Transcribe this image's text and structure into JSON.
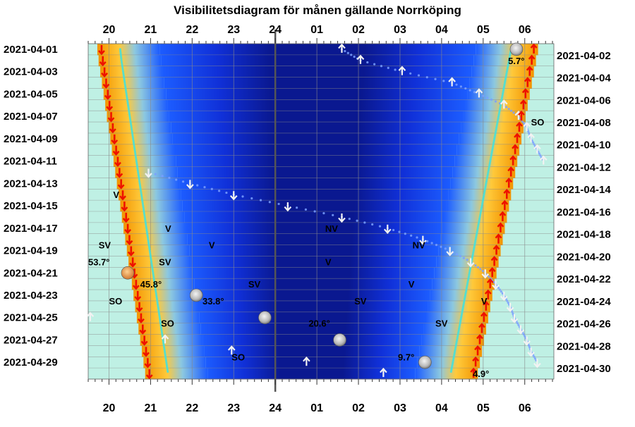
{
  "chart_data": {
    "type": "heatmap",
    "title": "Visibilitetsdiagram för månen gällande Norrköping",
    "hour_labels": [
      "20",
      "21",
      "22",
      "23",
      "24",
      "01",
      "02",
      "03",
      "04",
      "05",
      "06"
    ],
    "left_dates": [
      "2021-04-01",
      "2021-04-03",
      "2021-04-05",
      "2021-04-07",
      "2021-04-09",
      "2021-04-11",
      "2021-04-13",
      "2021-04-15",
      "2021-04-17",
      "2021-04-19",
      "2021-04-21",
      "2021-04-23",
      "2021-04-25",
      "2021-04-27",
      "2021-04-29"
    ],
    "right_dates": [
      "2021-04-02",
      "2021-04-04",
      "2021-04-06",
      "2021-04-08",
      "2021-04-10",
      "2021-04-12",
      "2021-04-14",
      "2021-04-16",
      "2021-04-18",
      "2021-04-20",
      "2021-04-22",
      "2021-04-24",
      "2021-04-26",
      "2021-04-28",
      "2021-04-30"
    ],
    "x_range_hours": [
      19.5,
      30.7
    ],
    "days": 30,
    "sunset_hours": [
      19.72,
      19.75,
      19.79,
      19.83,
      19.87,
      19.91,
      19.95,
      19.99,
      20.03,
      20.07,
      20.11,
      20.15,
      20.19,
      20.23,
      20.27,
      20.31,
      20.35,
      20.39,
      20.43,
      20.47,
      20.51,
      20.55,
      20.59,
      20.63,
      20.67,
      20.71,
      20.75,
      20.79,
      20.83,
      20.87
    ],
    "sunrise_hours": [
      30.32,
      30.27,
      30.22,
      30.17,
      30.12,
      30.07,
      30.02,
      29.97,
      29.92,
      29.87,
      29.82,
      29.77,
      29.72,
      29.67,
      29.62,
      29.57,
      29.52,
      29.47,
      29.42,
      29.37,
      29.32,
      29.27,
      29.22,
      29.17,
      29.12,
      29.07,
      29.02,
      28.97,
      28.92,
      28.87
    ],
    "moon_phase_markers": [
      {
        "day": 1,
        "hour": 29.8,
        "phase": "full"
      },
      {
        "day": 21,
        "hour": 20.45,
        "phase": "waxing-gibbous"
      },
      {
        "day": 23,
        "hour": 22.1,
        "phase": "waxing-gibbous"
      },
      {
        "day": 25,
        "hour": 23.75,
        "phase": "full"
      },
      {
        "day": 27,
        "hour": 25.55,
        "phase": "full"
      },
      {
        "day": 29,
        "hour": 27.6,
        "phase": "waning-gibbous"
      }
    ],
    "moonrise_markers": [
      {
        "day": 1,
        "hour": 25.6
      },
      {
        "day": 2,
        "hour": 26.05
      },
      {
        "day": 3,
        "hour": 27.05
      },
      {
        "day": 4,
        "hour": 28.25
      },
      {
        "day": 5,
        "hour": 28.9
      },
      {
        "day": 6,
        "hour": 29.5
      },
      {
        "day": 7,
        "hour": 29.85
      },
      {
        "day": 8,
        "hour": 30.05
      },
      {
        "day": 9,
        "hour": 30.15
      },
      {
        "day": 10,
        "hour": 30.3
      },
      {
        "day": 11,
        "hour": 30.45
      },
      {
        "day": 25,
        "hour": 19.55
      },
      {
        "day": 27,
        "hour": 21.35
      },
      {
        "day": 28,
        "hour": 22.95
      },
      {
        "day": 29,
        "hour": 24.75
      },
      {
        "day": 30,
        "hour": 26.6
      }
    ],
    "moonset_markers": [
      {
        "day": 12,
        "hour": 20.95
      },
      {
        "day": 13,
        "hour": 21.95
      },
      {
        "day": 14,
        "hour": 23.0
      },
      {
        "day": 15,
        "hour": 24.3
      },
      {
        "day": 16,
        "hour": 25.6
      },
      {
        "day": 17,
        "hour": 26.7
      },
      {
        "day": 18,
        "hour": 27.55
      },
      {
        "day": 19,
        "hour": 28.2
      },
      {
        "day": 20,
        "hour": 28.7
      },
      {
        "day": 21,
        "hour": 29.05
      },
      {
        "day": 22,
        "hour": 29.3
      },
      {
        "day": 23,
        "hour": 29.5
      },
      {
        "day": 24,
        "hour": 29.65
      },
      {
        "day": 25,
        "hour": 29.75
      },
      {
        "day": 26,
        "hour": 29.9
      },
      {
        "day": 27,
        "hour": 30.05
      },
      {
        "day": 28,
        "hour": 30.15
      },
      {
        "day": 29,
        "hour": 30.3
      }
    ],
    "annotations": [
      {
        "text": "5.7°",
        "day": 2,
        "hour": 29.6
      },
      {
        "text": "SO",
        "day": 7.5,
        "hour": 30.15
      },
      {
        "text": "V",
        "day": 14,
        "hour": 20.1
      },
      {
        "text": "V",
        "day": 17,
        "hour": 21.35
      },
      {
        "text": "NV",
        "day": 17,
        "hour": 25.2
      },
      {
        "text": "SV",
        "day": 18.5,
        "hour": 19.75
      },
      {
        "text": "V",
        "day": 18.5,
        "hour": 22.4
      },
      {
        "text": "NV",
        "day": 18.5,
        "hour": 27.3
      },
      {
        "text": "53.7°",
        "day": 20,
        "hour": 19.5
      },
      {
        "text": "SV",
        "day": 20,
        "hour": 21.2
      },
      {
        "text": "V",
        "day": 20,
        "hour": 25.2
      },
      {
        "text": "45.8°",
        "day": 22,
        "hour": 20.75
      },
      {
        "text": "SV",
        "day": 22,
        "hour": 23.35
      },
      {
        "text": "V",
        "day": 22,
        "hour": 27.2
      },
      {
        "text": "SO",
        "day": 23.5,
        "hour": 20.0
      },
      {
        "text": "33.8°",
        "day": 23.5,
        "hour": 22.25
      },
      {
        "text": "SV",
        "day": 23.5,
        "hour": 25.9
      },
      {
        "text": "V",
        "day": 23.5,
        "hour": 28.95
      },
      {
        "text": "SO",
        "day": 25.5,
        "hour": 21.25
      },
      {
        "text": "20.6°",
        "day": 25.5,
        "hour": 24.8
      },
      {
        "text": "SV",
        "day": 25.5,
        "hour": 27.85
      },
      {
        "text": "SO",
        "day": 28.5,
        "hour": 22.95
      },
      {
        "text": "9.7°",
        "day": 28.5,
        "hour": 26.95
      },
      {
        "text": "4.9°",
        "day": 30,
        "hour": 28.75
      }
    ],
    "colors": {
      "day_sky": "#bff0e4",
      "twilight_orange": "#f5a300",
      "twilight_yellow": "#ffe066",
      "night_blue": "#0a1890",
      "night_edge_blue": "#1c5cff",
      "sun_line": "#ee1100",
      "moon_track_dot": "#7aa0ff",
      "moon_track_dot_bright": "#40e0e0",
      "arrow": "#f2f2f2",
      "midnight_line": "#555555"
    }
  }
}
